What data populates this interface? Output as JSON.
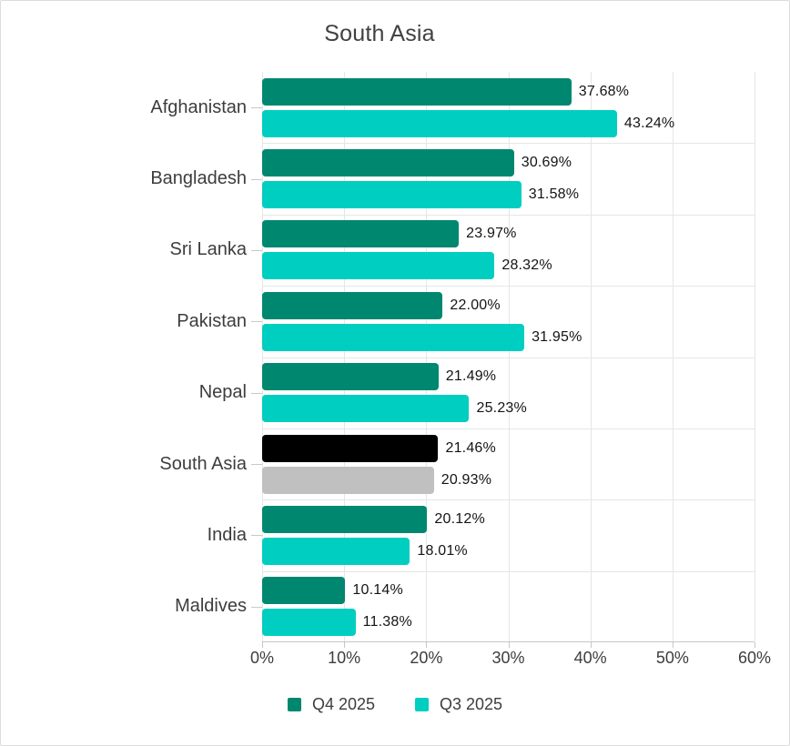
{
  "window": {
    "background": "#ffffff",
    "border_color": "#dcdcdc"
  },
  "chart_data": {
    "type": "bar",
    "orientation": "horizontal",
    "title": "South Asia",
    "categories": [
      "Afghanistan",
      "Bangladesh",
      "Sri Lanka",
      "Pakistan",
      "Nepal",
      "South Asia",
      "India",
      "Maldives"
    ],
    "series": [
      {
        "name": "Q4 2025",
        "color": "#008770",
        "values": [
          37.68,
          30.69,
          23.97,
          22.0,
          21.49,
          21.46,
          20.12,
          10.14
        ],
        "labels": [
          "37.68%",
          "30.69%",
          "23.97%",
          "22.00%",
          "21.49%",
          "21.46%",
          "20.12%",
          "10.14%"
        ]
      },
      {
        "name": "Q3 2025",
        "color": "#00CEC0",
        "values": [
          43.24,
          31.58,
          28.32,
          31.95,
          25.23,
          20.93,
          18.01,
          11.38
        ],
        "labels": [
          "43.24%",
          "31.58%",
          "28.32%",
          "31.95%",
          "25.23%",
          "20.93%",
          "18.01%",
          "11.38%"
        ]
      }
    ],
    "highlight": {
      "category": "South Asia",
      "series_colors": [
        "#000000",
        "#C0C0C0"
      ]
    },
    "x_axis": {
      "min": 0,
      "max": 60,
      "tick_labels": [
        "0%",
        "10%",
        "20%",
        "30%",
        "40%",
        "50%",
        "60%"
      ]
    },
    "grid": true,
    "legend": {
      "position": "bottom",
      "items": [
        {
          "label": "Q4 2025",
          "color": "#008770"
        },
        {
          "label": "Q3 2025",
          "color": "#00CEC0"
        }
      ]
    }
  }
}
